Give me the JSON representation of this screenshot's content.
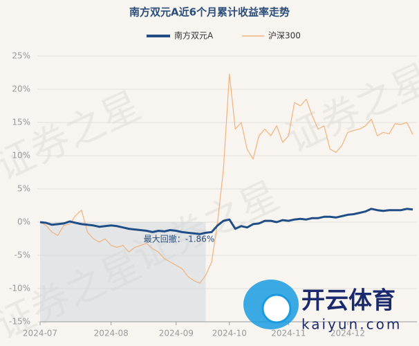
{
  "chart_data": {
    "type": "line",
    "title": "南方双元A近6个月累计收益率走势",
    "categories": [
      "2024-07",
      null,
      null,
      null,
      null,
      null,
      null,
      null,
      null,
      null,
      null,
      null,
      "2024-08",
      null,
      null,
      null,
      null,
      null,
      null,
      null,
      null,
      null,
      null,
      "2024-09",
      null,
      null,
      null,
      null,
      null,
      null,
      null,
      null,
      "2024-10",
      null,
      null,
      null,
      null,
      null,
      null,
      null,
      null,
      null,
      "2024-11",
      null,
      null,
      null,
      null,
      null,
      null,
      null,
      null,
      null,
      "2024-12",
      null,
      null,
      null,
      null,
      null,
      null,
      null,
      null,
      null,
      null,
      null
    ],
    "series": [
      {
        "name": "南方双元A",
        "color": "#1f4e87",
        "values": [
          0,
          -0.1,
          -0.4,
          -0.3,
          -0.2,
          0.1,
          -0.1,
          -0.3,
          -0.4,
          -0.5,
          -0.7,
          -0.6,
          -0.5,
          -0.6,
          -0.8,
          -1.0,
          -1.1,
          -1.2,
          -1.3,
          -1.5,
          -1.3,
          -1.4,
          -1.2,
          -1.3,
          -1.5,
          -1.6,
          -1.7,
          -1.8,
          -1.6,
          -1.5,
          -0.5,
          0.2,
          0.4,
          -1.0,
          -0.6,
          -0.8,
          -0.3,
          -0.2,
          0.2,
          0.2,
          0.0,
          0.3,
          0.2,
          0.4,
          0.5,
          0.4,
          0.6,
          0.6,
          0.8,
          0.8,
          0.7,
          0.9,
          1.1,
          1.2,
          1.4,
          1.6,
          2.0,
          1.8,
          1.7,
          1.8,
          1.8,
          1.8,
          2.0,
          1.9
        ]
      },
      {
        "name": "沪深300",
        "color": "#f0b27a",
        "values": [
          0,
          -0.5,
          -1.5,
          -2,
          -0.5,
          -0.3,
          1.0,
          1.8,
          -1.5,
          -2.5,
          -3,
          -2.5,
          -3.5,
          -3.8,
          -3.5,
          -4.5,
          -3.8,
          -3.5,
          -3.2,
          -4,
          -4.5,
          -5.5,
          -6,
          -6.5,
          -7,
          -8.2,
          -8.8,
          -9.2,
          -8,
          -6,
          0,
          8,
          22.3,
          14,
          15,
          11,
          9.5,
          13,
          14,
          13,
          14.5,
          12,
          13,
          18,
          17.5,
          18.5,
          16,
          14,
          14.5,
          11,
          10.5,
          11.5,
          13.5,
          13.8,
          14,
          14.5,
          15.5,
          13,
          13.5,
          13.3,
          14.8,
          14.7,
          15,
          13.2
        ]
      }
    ],
    "ylim": [
      -15,
      25
    ],
    "yticks": [
      {
        "value": -15,
        "label": "-15%"
      },
      {
        "value": -10,
        "label": "-10%"
      },
      {
        "value": -5,
        "label": "-5%"
      },
      {
        "value": 0,
        "label": "0%"
      },
      {
        "value": 5,
        "label": "5%"
      },
      {
        "value": 10,
        "label": "10%"
      },
      {
        "value": 15,
        "label": "15%"
      },
      {
        "value": 20,
        "label": "20%"
      },
      {
        "value": 25,
        "label": "25%"
      }
    ],
    "grid": true,
    "annotation": "最大回撤：-1.86%",
    "watermark": "证券之星",
    "logo": {
      "text": "开云体育",
      "url": "kaiyun.com"
    }
  }
}
